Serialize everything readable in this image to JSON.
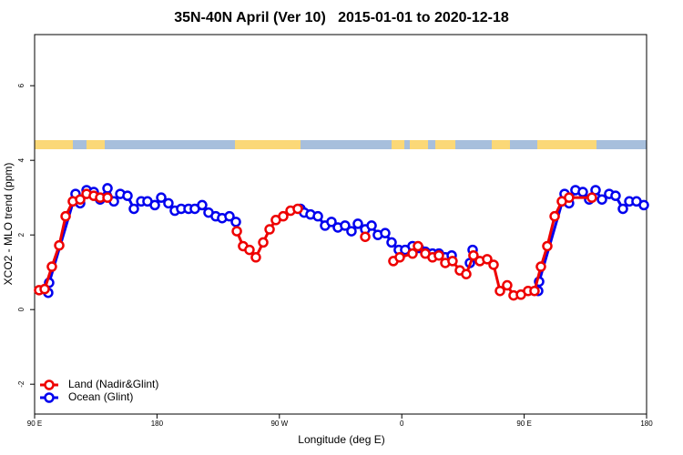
{
  "chart_data": {
    "type": "line",
    "title": "35N-40N April (Ver 10)   2015-01-01 to 2020-12-18",
    "xlabel": "Longitude (deg E)",
    "ylabel": "XCO2 - MLO trend (ppm)",
    "xlim": [
      90,
      540
    ],
    "xticks": [
      {
        "value": 90,
        "label": "90 E"
      },
      180,
      {
        "value": 270,
        "label": "90 W"
      },
      {
        "value": 360,
        "label": "0"
      },
      {
        "value": 450,
        "label": "90 E"
      },
      {
        "value": 540,
        "label": "180"
      }
    ],
    "ylim": [
      -2.8,
      7.37
    ],
    "yticks": [
      -2,
      0,
      2,
      4,
      6
    ],
    "legend": "bottom-left",
    "series": [
      {
        "name": "Ocean (Glint)",
        "color": "#0000ee",
        "x": [
          100.0,
          100.7,
          120.1,
          123.5,
          128.2,
          133.5,
          138.2,
          143.6,
          148.3,
          153.0,
          158.3,
          163.0,
          168.4,
          173.0,
          178.4,
          183.1,
          188.4,
          193.1,
          197.8,
          203.2,
          207.8,
          213.2,
          217.9,
          223.2,
          227.9,
          233.3,
          238.0,
          null,
          285.5,
          288.2,
          292.9,
          298.3,
          303.6,
          308.3,
          313.0,
          318.3,
          323.0,
          327.7,
          333.1,
          337.8,
          342.4,
          347.8,
          352.5,
          357.8,
          362.5,
          367.9,
          372.6,
          377.3,
          382.6,
          387.3,
          392.0,
          396.7,
          null,
          410.1,
          412.1,
          null,
          460.3,
          461.0,
          479.7,
          483.0,
          487.7,
          493.1,
          497.8,
          502.5,
          507.2,
          512.5,
          517.2,
          522.6,
          527.3,
          532.6,
          538.0
        ],
        "values": [
          0.45,
          0.72,
          3.1,
          2.85,
          3.2,
          3.15,
          2.95,
          3.25,
          2.9,
          3.1,
          3.05,
          2.7,
          2.9,
          2.9,
          2.8,
          3.0,
          2.85,
          2.65,
          2.7,
          2.7,
          2.7,
          2.8,
          2.6,
          2.5,
          2.45,
          2.5,
          2.35,
          null,
          2.7,
          2.6,
          2.55,
          2.5,
          2.25,
          2.35,
          2.2,
          2.25,
          2.1,
          2.3,
          2.15,
          2.25,
          2.0,
          2.05,
          1.8,
          1.6,
          1.6,
          1.7,
          1.65,
          1.55,
          1.5,
          1.5,
          1.4,
          1.45,
          null,
          1.25,
          1.6,
          null,
          0.5,
          0.75,
          3.1,
          2.85,
          3.2,
          3.15,
          2.95,
          3.2,
          2.95,
          3.1,
          3.05,
          2.7,
          2.9,
          2.9,
          2.8
        ]
      },
      {
        "name": "Land (Nadir&Glint)",
        "color": "#ee0000",
        "x": [
          93.3,
          97.4,
          102.7,
          108.1,
          112.8,
          118.1,
          123.5,
          128.2,
          133.5,
          138.2,
          143.6,
          null,
          238.7,
          243.3,
          248.0,
          252.7,
          258.1,
          262.8,
          267.4,
          272.8,
          278.2,
          283.5,
          null,
          333.1,
          null,
          353.8,
          358.5,
          367.9,
          371.9,
          377.3,
          382.6,
          387.3,
          392.0,
          397.3,
          402.7,
          407.4,
          412.7,
          417.4,
          422.8,
          427.5,
          432.2,
          437.5,
          442.2,
          447.6,
          452.9,
          457.6,
          462.3,
          467.0,
          472.4,
          477.7,
          483.0,
          499.8
        ],
        "values": [
          0.52,
          0.55,
          1.15,
          1.72,
          2.5,
          2.9,
          2.95,
          3.1,
          3.05,
          3.0,
          3.0,
          null,
          2.1,
          1.7,
          1.6,
          1.4,
          1.8,
          2.15,
          2.4,
          2.5,
          2.65,
          2.7,
          null,
          1.95,
          null,
          1.3,
          1.4,
          1.5,
          1.7,
          1.5,
          1.4,
          1.45,
          1.25,
          1.3,
          1.05,
          0.95,
          1.45,
          1.3,
          1.35,
          1.2,
          0.5,
          0.65,
          0.38,
          0.4,
          0.5,
          0.5,
          1.15,
          1.7,
          2.5,
          2.9,
          3.0,
          3.0
        ]
      }
    ]
  }
}
